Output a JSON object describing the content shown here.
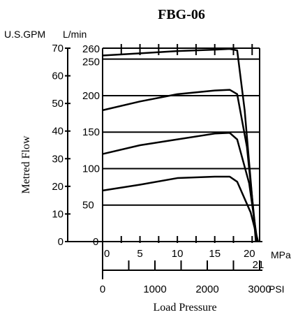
{
  "chart_data": {
    "type": "line",
    "title": "FBG-06",
    "ylabel": "Metred Flow",
    "xlabel": "Load Pressure",
    "gpm_axis": {
      "label": "U.S.GPM",
      "ticks": [
        "0",
        "10",
        "20",
        "30",
        "40",
        "50",
        "60",
        "70"
      ],
      "range": [
        0,
        70
      ]
    },
    "lpm_axis": {
      "label": "L/min",
      "ticks": [
        "0",
        "50",
        "100",
        "150",
        "200",
        "250",
        "260"
      ],
      "range": [
        0,
        265
      ]
    },
    "mpa_axis": {
      "label": "MPa",
      "ticks": [
        "0",
        "5",
        "10",
        "15",
        "20",
        "21"
      ],
      "range": [
        0,
        21
      ]
    },
    "psi_axis": {
      "label": "PSI",
      "ticks": [
        "0",
        "1000",
        "2000",
        "3000"
      ],
      "range": [
        0,
        3000
      ]
    },
    "grid": true,
    "x_unit": "MPa",
    "y_unit": "L/min",
    "series": [
      {
        "x": [
          0,
          5,
          10,
          15,
          17,
          18,
          19,
          20.5
        ],
        "y": [
          255,
          258,
          261,
          263,
          264,
          262,
          180,
          0
        ]
      },
      {
        "x": [
          0,
          5,
          10,
          15,
          17,
          18,
          19.3,
          20.6
        ],
        "y": [
          180,
          192,
          202,
          207,
          208,
          202,
          130,
          0
        ]
      },
      {
        "x": [
          0,
          5,
          10,
          15,
          17,
          18,
          19.6,
          20.7
        ],
        "y": [
          120,
          132,
          140,
          148,
          149,
          140,
          80,
          0
        ]
      },
      {
        "x": [
          0,
          5,
          10,
          15,
          17,
          18,
          19.8,
          20.8
        ],
        "y": [
          70,
          78,
          87,
          89,
          89,
          82,
          40,
          0
        ]
      }
    ]
  }
}
